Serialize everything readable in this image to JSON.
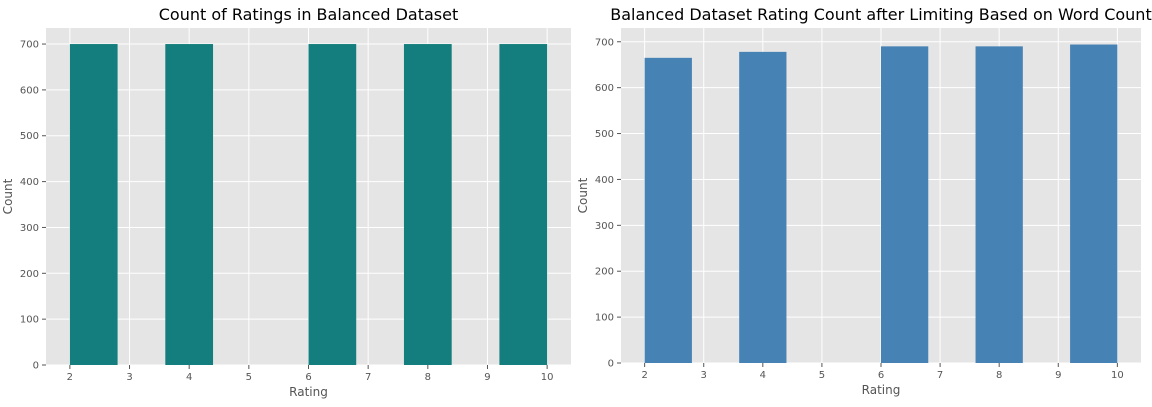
{
  "chart_data": [
    {
      "type": "bar",
      "title": "Count of Ratings in Balanced Dataset",
      "xlabel": "Rating",
      "ylabel": "Count",
      "color": "#137e7d",
      "background": "#e5e5e5",
      "grid": true,
      "bars": [
        {
          "x_start": 2.0,
          "x_end": 2.8,
          "value": 700
        },
        {
          "x_start": 3.6,
          "x_end": 4.4,
          "value": 700
        },
        {
          "x_start": 6.0,
          "x_end": 6.8,
          "value": 700
        },
        {
          "x_start": 7.6,
          "x_end": 8.4,
          "value": 700
        },
        {
          "x_start": 9.2,
          "x_end": 10.0,
          "value": 700
        }
      ],
      "xlim": [
        1.6,
        10.4
      ],
      "ylim": [
        0,
        735
      ],
      "xticks": [
        2,
        3,
        4,
        5,
        6,
        7,
        8,
        9,
        10
      ],
      "yticks": [
        0,
        100,
        200,
        300,
        400,
        500,
        600,
        700
      ]
    },
    {
      "type": "bar",
      "title": "Balanced Dataset Rating Count after Limiting Based on Word Count",
      "xlabel": "Rating",
      "ylabel": "Count",
      "color": "#4682b4",
      "background": "#e5e5e5",
      "grid": true,
      "bars": [
        {
          "x_start": 2.0,
          "x_end": 2.8,
          "value": 665
        },
        {
          "x_start": 3.6,
          "x_end": 4.4,
          "value": 678
        },
        {
          "x_start": 6.0,
          "x_end": 6.8,
          "value": 690
        },
        {
          "x_start": 7.6,
          "x_end": 8.4,
          "value": 690
        },
        {
          "x_start": 9.2,
          "x_end": 10.0,
          "value": 694
        }
      ],
      "xlim": [
        1.6,
        10.4
      ],
      "ylim": [
        0,
        730
      ],
      "xticks": [
        2,
        3,
        4,
        5,
        6,
        7,
        8,
        9,
        10
      ],
      "yticks": [
        0,
        100,
        200,
        300,
        400,
        500,
        600,
        700
      ]
    }
  ]
}
